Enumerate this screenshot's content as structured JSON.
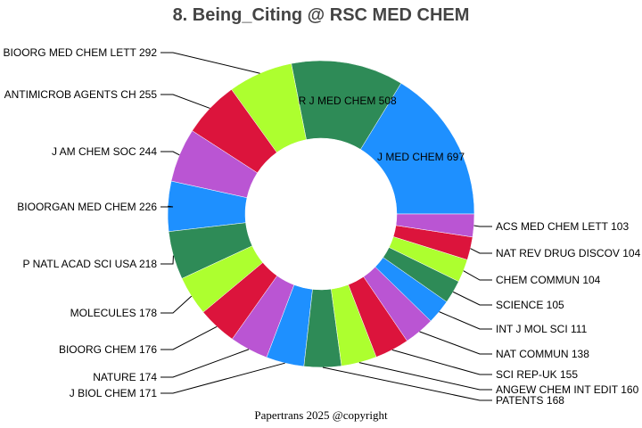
{
  "chart_data": {
    "type": "pie",
    "hole": true,
    "title": "8. Being_Citing @ RSC MED CHEM",
    "footer": "Papertrans 2025 @copyright",
    "direction": "counterclockwise, starting at 3 o'clock, sorted descending",
    "colors": [
      "#1E90FF",
      "#2E8B57",
      "#ADFF2F",
      "#DC143C",
      "#BA55D3"
    ],
    "slices": [
      {
        "label": "J MED CHEM",
        "value": 697
      },
      {
        "label": "EUR J MED CHEM",
        "value": 508
      },
      {
        "label": "BIOORG MED CHEM LETT",
        "value": 292
      },
      {
        "label": "ANTIMICROB AGENTS CH",
        "value": 255
      },
      {
        "label": "J AM CHEM SOC",
        "value": 244
      },
      {
        "label": "BIOORGAN MED CHEM",
        "value": 226
      },
      {
        "label": "P NATL ACAD SCI USA",
        "value": 218
      },
      {
        "label": "MOLECULES",
        "value": 178
      },
      {
        "label": "BIOORG CHEM",
        "value": 176
      },
      {
        "label": "NATURE",
        "value": 174
      },
      {
        "label": "J BIOL CHEM",
        "value": 171
      },
      {
        "label": "PATENTS",
        "value": 168
      },
      {
        "label": "ANGEW CHEM INT EDIT",
        "value": 160
      },
      {
        "label": "SCI REP-UK",
        "value": 155
      },
      {
        "label": "NAT COMMUN",
        "value": 138
      },
      {
        "label": "INT J MOL SCI",
        "value": 111
      },
      {
        "label": "SCIENCE",
        "value": 105
      },
      {
        "label": "CHEM COMMUN",
        "value": 104
      },
      {
        "label": "NAT REV DRUG DISCOV",
        "value": 104
      },
      {
        "label": "ACS MED CHEM LETT",
        "value": 103
      }
    ]
  }
}
